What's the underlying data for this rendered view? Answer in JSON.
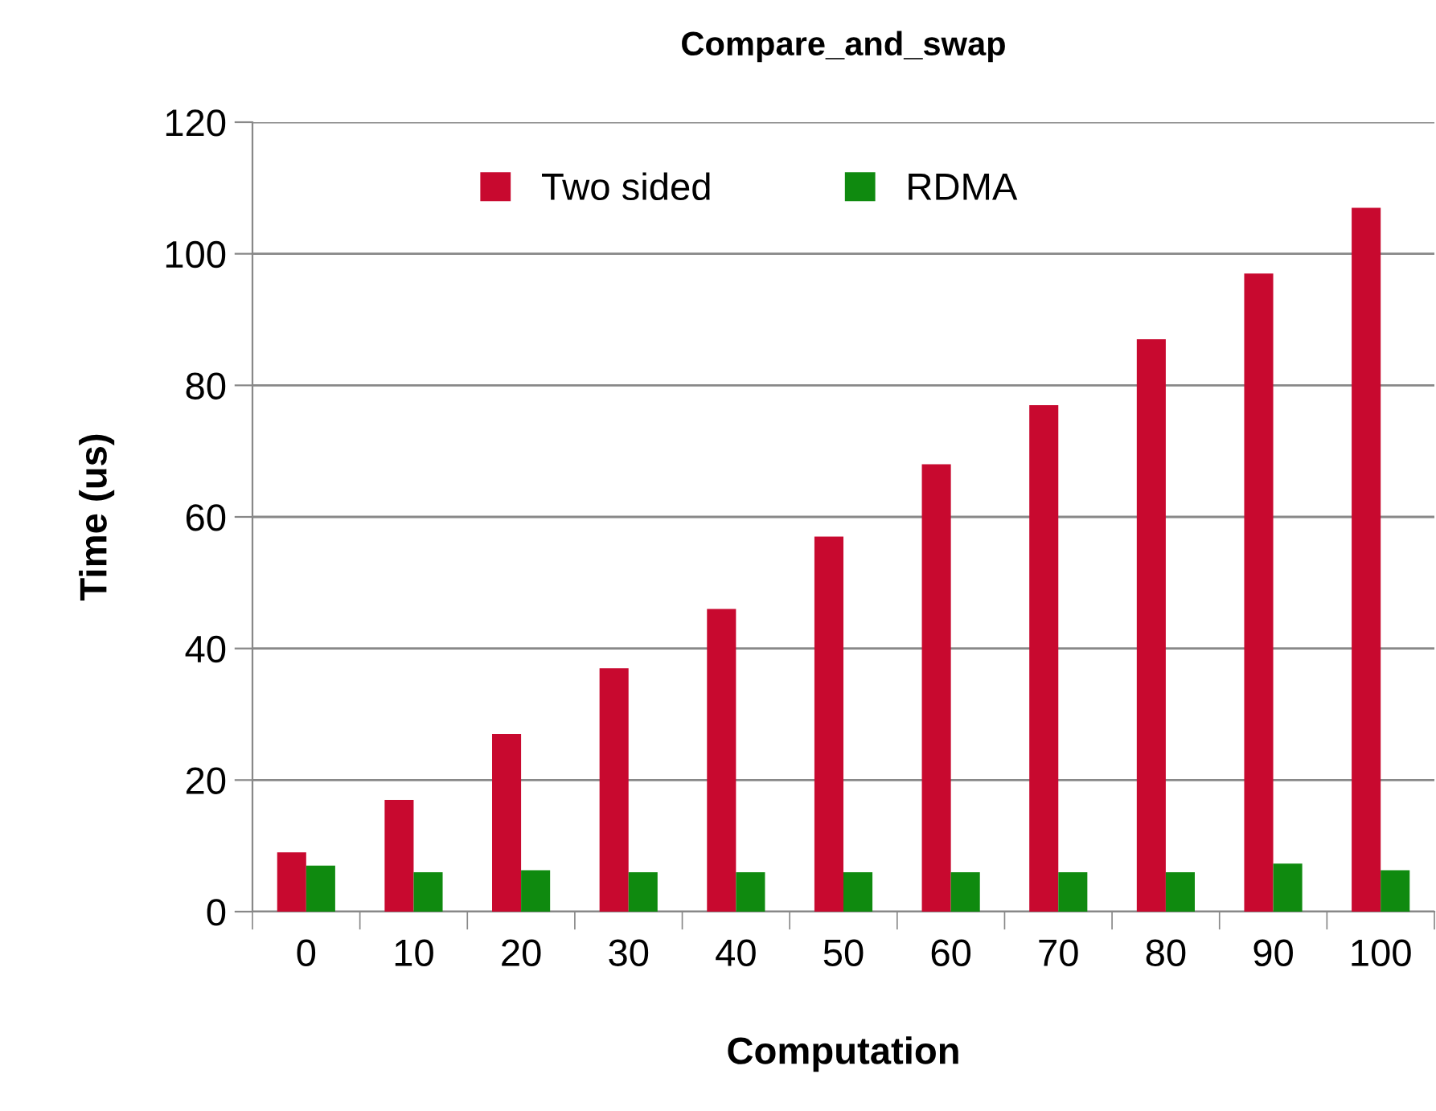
{
  "chart_data": {
    "type": "bar",
    "title": "Compare_and_swap",
    "xlabel": "Computation",
    "ylabel": "Time (us)",
    "categories": [
      "0",
      "10",
      "20",
      "30",
      "40",
      "50",
      "60",
      "70",
      "80",
      "90",
      "100"
    ],
    "series": [
      {
        "name": "Two sided",
        "color": "#c8092f",
        "values": [
          9,
          17,
          27,
          37,
          46,
          57,
          68,
          77,
          87,
          97,
          107
        ]
      },
      {
        "name": "RDMA",
        "color": "#0f8a0f",
        "values": [
          7,
          6,
          6.3,
          6,
          6,
          6,
          6,
          6,
          6,
          7.3,
          6.3
        ]
      }
    ],
    "ylim": [
      0,
      120
    ],
    "yticks": [
      0,
      20,
      40,
      60,
      80,
      100,
      120
    ],
    "grid": "y",
    "legend": "top"
  }
}
